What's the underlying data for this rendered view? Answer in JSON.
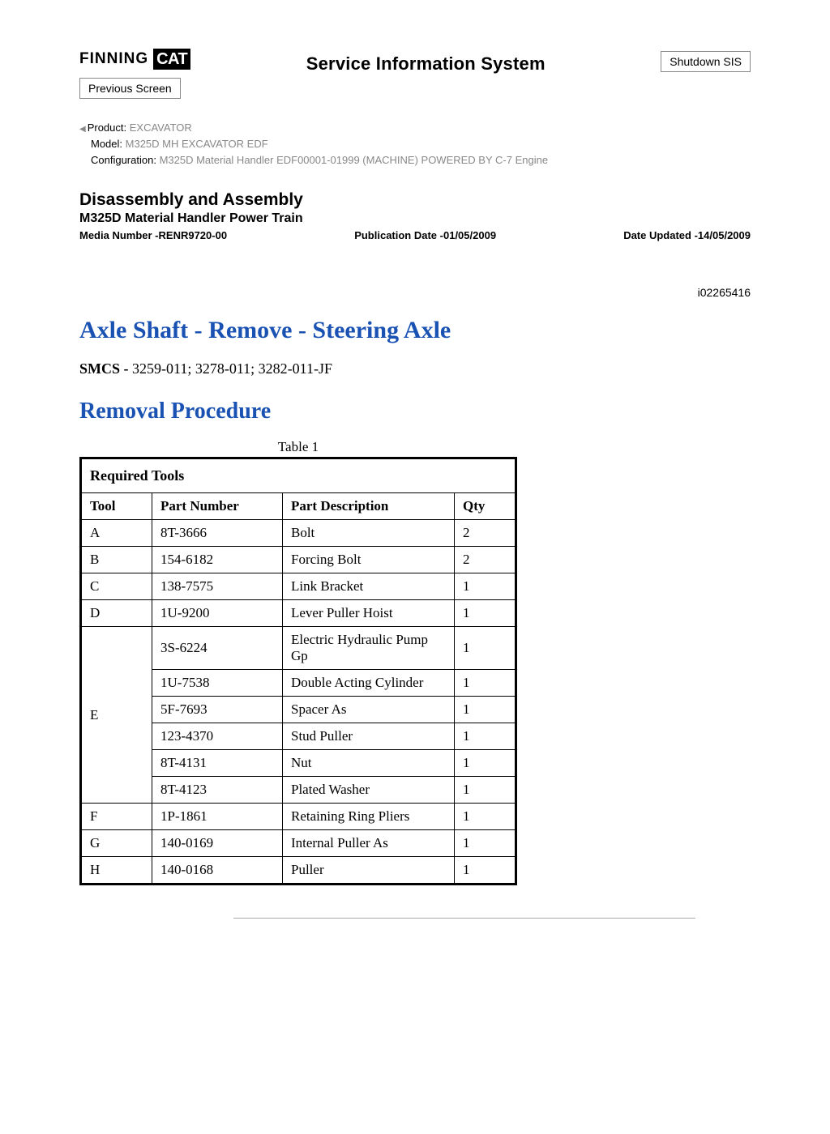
{
  "header": {
    "brand_text": "FINNING",
    "brand_badge": "CAT",
    "system_title": "Service Information System",
    "shutdown_label": "Shutdown SIS",
    "previous_label": "Previous Screen"
  },
  "meta": {
    "product_label": "Product:",
    "product_value": "  EXCAVATOR",
    "model_label": "Model:",
    "model_value": "  M325D MH EXCAVATOR EDF",
    "config_label": "Configuration:",
    "config_value": " M325D Material Handler EDF00001-01999 (MACHINE) POWERED BY C-7 Engine"
  },
  "section": {
    "heading": "Disassembly and Assembly",
    "subsystem": "M325D Material Handler Power Train",
    "media_label": "Media Number -",
    "media_value": "RENR9720-00",
    "pubdate_label": "Publication Date -",
    "pubdate_value": "01/05/2009",
    "updated_label": "Date Updated -",
    "updated_value": "14/05/2009"
  },
  "doc_id": "i02265416",
  "article": {
    "title": "Axle Shaft - Remove - Steering Axle",
    "smcs_label": "SMCS - ",
    "smcs_value": "3259-011; 3278-011; 3282-011-JF",
    "procedure_heading": "Removal Procedure"
  },
  "table": {
    "caption": "Table 1",
    "title": "Required Tools",
    "columns": [
      "Tool",
      "Part Number",
      "Part Description",
      "Qty"
    ],
    "groups": [
      {
        "tool": "A",
        "items": [
          {
            "pn": "8T-3666",
            "desc": "Bolt",
            "qty": "2"
          }
        ]
      },
      {
        "tool": "B",
        "items": [
          {
            "pn": "154-6182",
            "desc": "Forcing Bolt",
            "qty": "2"
          }
        ]
      },
      {
        "tool": "C",
        "items": [
          {
            "pn": "138-7575",
            "desc": "Link Bracket",
            "qty": "1"
          }
        ]
      },
      {
        "tool": "D",
        "items": [
          {
            "pn": "1U-9200",
            "desc": "Lever Puller Hoist",
            "qty": "1"
          }
        ]
      },
      {
        "tool": "E",
        "items": [
          {
            "pn": "3S-6224",
            "desc": "Electric Hydraulic Pump Gp",
            "qty": "1"
          },
          {
            "pn": "1U-7538",
            "desc": "Double Acting Cylinder",
            "qty": "1"
          },
          {
            "pn": "5F-7693",
            "desc": "Spacer As",
            "qty": "1"
          },
          {
            "pn": "123-4370",
            "desc": "Stud Puller",
            "qty": "1"
          },
          {
            "pn": "8T-4131",
            "desc": "Nut",
            "qty": "1"
          },
          {
            "pn": "8T-4123",
            "desc": "Plated Washer",
            "qty": "1"
          }
        ]
      },
      {
        "tool": "F",
        "items": [
          {
            "pn": "1P-1861",
            "desc": "Retaining Ring Pliers",
            "qty": "1"
          }
        ]
      },
      {
        "tool": "G",
        "items": [
          {
            "pn": "140-0169",
            "desc": "Internal Puller As",
            "qty": "1"
          }
        ]
      },
      {
        "tool": "H",
        "items": [
          {
            "pn": "140-0168",
            "desc": "Puller",
            "qty": "1"
          }
        ]
      }
    ]
  }
}
